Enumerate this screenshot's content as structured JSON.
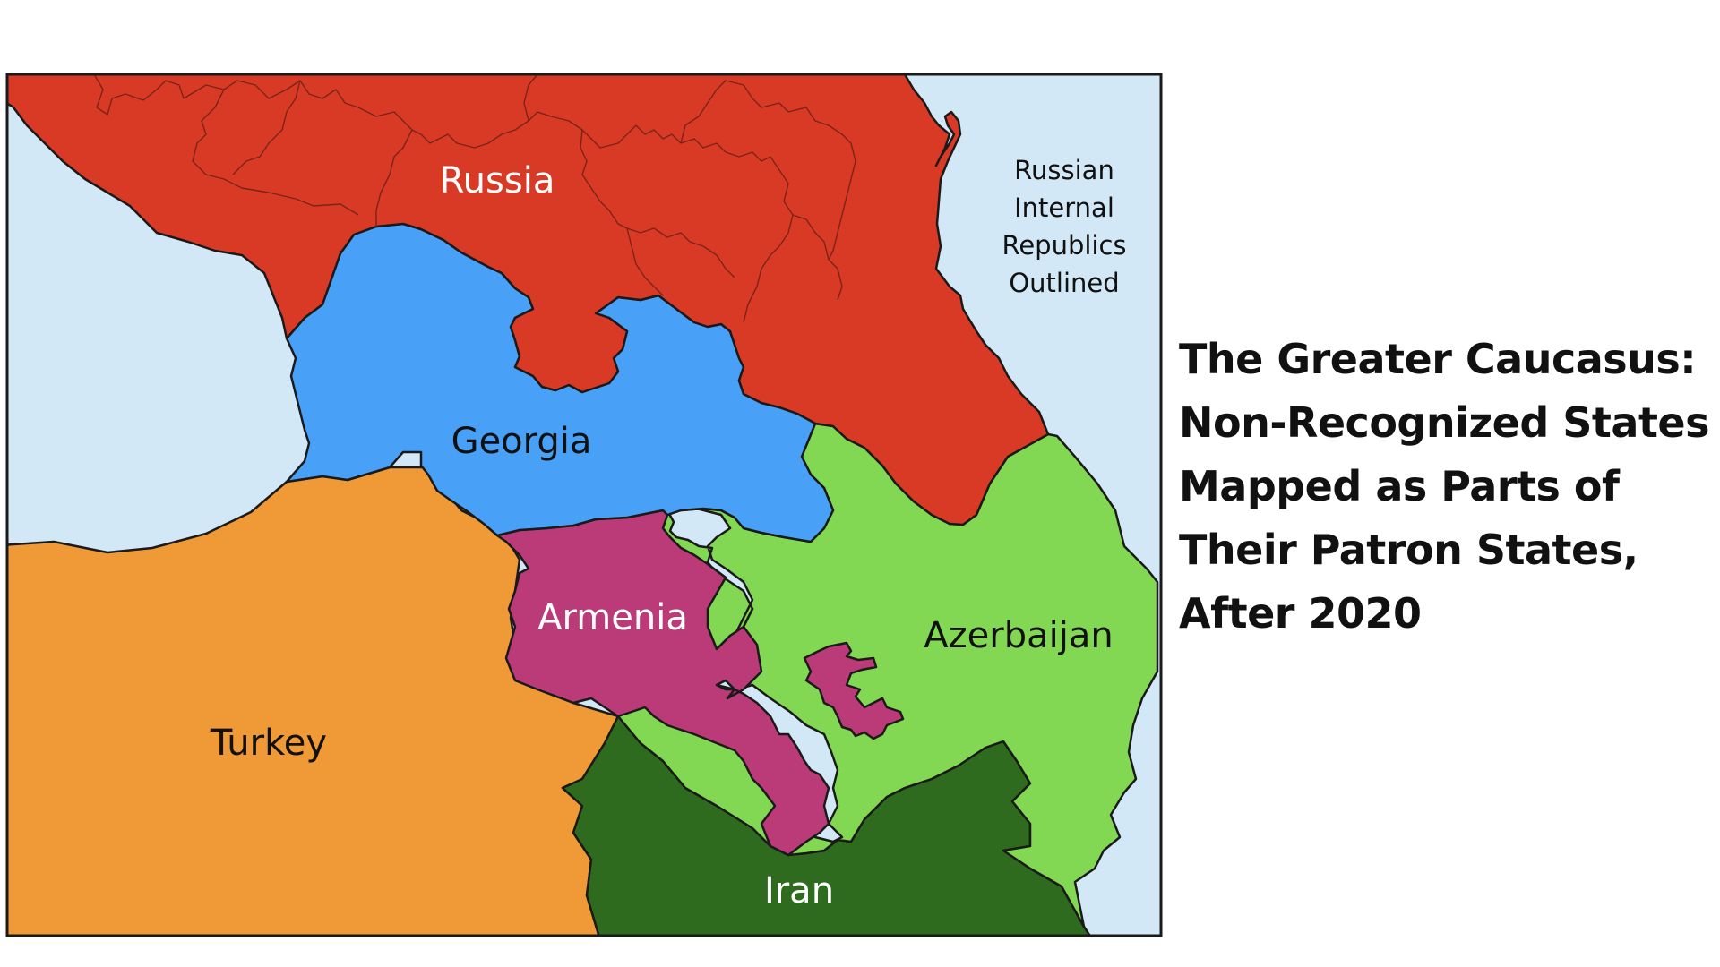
{
  "colors": {
    "sea": "#d3e8f6",
    "russia": "#d93a26",
    "georgia": "#48a0f7",
    "armenia": "#bb3a78",
    "azerbaijan": "#82d753",
    "turkey": "#ef9a37",
    "iran": "#2f6b1e",
    "border": "#1a1a1a"
  },
  "labels": {
    "russia": "Russia",
    "georgia": "Georgia",
    "armenia": "Armenia",
    "azerbaijan": "Azerbaijan",
    "turkey": "Turkey",
    "iran": "Iran"
  },
  "note": {
    "lines": [
      "Russian",
      "Internal",
      "Republics",
      "Outlined"
    ]
  },
  "title": {
    "lines": [
      "The Greater Caucasus:",
      "Non-Recognized States",
      "Mapped as Parts of",
      "Their Patron States,",
      "After 2020"
    ]
  }
}
